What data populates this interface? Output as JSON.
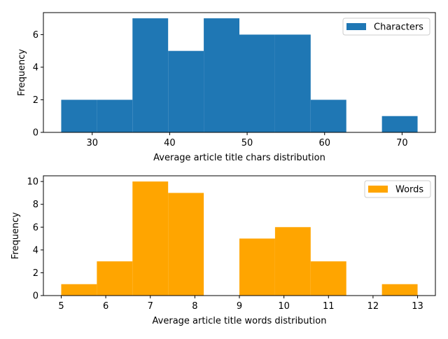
{
  "chart_data": [
    {
      "type": "bar",
      "subtype": "histogram",
      "xlabel": "Average article title chars distribution",
      "ylabel": "Frequency",
      "xlim": [
        23.7,
        74.3
      ],
      "ylim": [
        0,
        7.35
      ],
      "xticks": [
        30,
        40,
        50,
        60,
        70
      ],
      "yticks": [
        0,
        2,
        4,
        6
      ],
      "bin_edges": [
        26.0,
        30.6,
        35.2,
        39.8,
        44.4,
        49.0,
        53.6,
        58.2,
        62.8,
        67.4,
        72.0
      ],
      "series": [
        {
          "name": "Characters",
          "color": "#1f77b4",
          "values": [
            2,
            2,
            7,
            5,
            7,
            6,
            6,
            2,
            0,
            1
          ]
        }
      ],
      "legend": {
        "position": "top-right"
      },
      "grid": false
    },
    {
      "type": "bar",
      "subtype": "histogram",
      "xlabel": "Average article title words distribution",
      "ylabel": "Frequency",
      "xlim": [
        4.6,
        13.4
      ],
      "ylim": [
        0,
        10.5
      ],
      "xticks": [
        5,
        6,
        7,
        8,
        9,
        10,
        11,
        12,
        13
      ],
      "yticks": [
        0,
        2,
        4,
        6,
        8,
        10
      ],
      "bin_edges": [
        5.0,
        5.8,
        6.6,
        7.4,
        8.2,
        9.0,
        9.8,
        10.6,
        11.4,
        12.2,
        13.0
      ],
      "series": [
        {
          "name": "Words",
          "color": "#ffa500",
          "values": [
            1,
            3,
            10,
            9,
            0,
            5,
            6,
            3,
            0,
            1
          ]
        }
      ],
      "legend": {
        "position": "top-right"
      },
      "grid": false
    }
  ]
}
